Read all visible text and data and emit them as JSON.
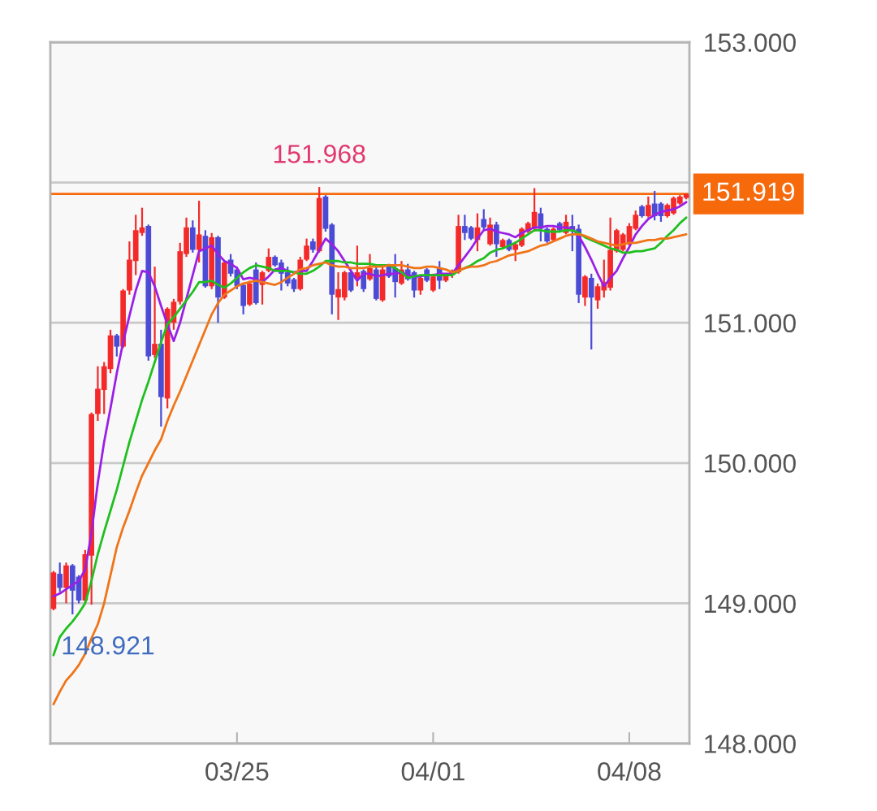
{
  "chart_data": {
    "type": "candlestick",
    "categories": [
      null,
      null,
      null,
      null,
      null,
      null,
      null,
      null,
      null,
      null,
      null,
      null,
      null,
      null,
      null,
      null,
      null,
      null,
      null,
      null,
      null,
      null,
      null,
      null,
      null,
      null,
      null,
      null,
      null,
      "03/25",
      null,
      null,
      null,
      null,
      null,
      null,
      null,
      null,
      null,
      null,
      null,
      null,
      null,
      null,
      null,
      null,
      null,
      null,
      null,
      null,
      null,
      null,
      null,
      null,
      null,
      null,
      null,
      null,
      null,
      null,
      "04/01",
      null,
      null,
      null,
      null,
      null,
      null,
      null,
      null,
      null,
      null,
      null,
      null,
      null,
      null,
      null,
      null,
      null,
      null,
      null,
      null,
      null,
      null,
      null,
      null,
      null,
      null,
      null,
      null,
      null,
      null,
      "04/08",
      null,
      null,
      null,
      null,
      null,
      null,
      null,
      null,
      null
    ],
    "ohlc": [
      [
        148.96,
        149.23,
        148.95,
        149.22
      ],
      [
        149.21,
        149.29,
        149.08,
        149.11
      ],
      [
        149.11,
        149.29,
        149.0,
        149.27
      ],
      [
        149.27,
        149.28,
        148.921,
        149.09
      ],
      [
        149.19,
        149.2,
        149.0,
        149.02
      ],
      [
        149.02,
        149.38,
        149.0,
        149.35
      ],
      [
        149.34,
        150.36,
        148.99,
        150.35
      ],
      [
        150.35,
        150.69,
        150.3,
        150.53
      ],
      [
        150.52,
        150.72,
        150.35,
        150.69
      ],
      [
        150.67,
        150.95,
        150.64,
        150.91
      ],
      [
        150.91,
        150.92,
        150.76,
        150.83
      ],
      [
        150.83,
        151.24,
        150.82,
        151.23
      ],
      [
        151.23,
        151.58,
        151.2,
        151.45
      ],
      [
        151.44,
        151.77,
        151.34,
        151.66
      ],
      [
        151.64,
        151.82,
        151.62,
        151.68
      ],
      [
        151.69,
        151.7,
        150.73,
        150.76
      ],
      [
        150.77,
        151.4,
        150.75,
        150.85
      ],
      [
        150.85,
        150.95,
        150.26,
        150.47
      ],
      [
        150.46,
        151.11,
        150.39,
        151.1
      ],
      [
        151.0,
        151.17,
        150.95,
        151.15
      ],
      [
        151.15,
        151.57,
        151.13,
        151.51
      ],
      [
        151.49,
        151.75,
        151.47,
        151.68
      ],
      [
        151.68,
        151.73,
        151.5,
        151.52
      ],
      [
        151.52,
        151.87,
        151.43,
        151.63
      ],
      [
        151.62,
        151.66,
        151.25,
        151.26
      ],
      [
        151.26,
        151.64,
        151.24,
        151.61
      ],
      [
        151.61,
        151.62,
        151.0,
        151.18
      ],
      [
        151.18,
        151.44,
        151.17,
        151.43
      ],
      [
        151.45,
        151.49,
        151.33,
        151.35
      ],
      [
        151.38,
        151.4,
        151.24,
        151.26
      ],
      [
        151.27,
        151.28,
        151.06,
        151.12
      ],
      [
        151.13,
        151.3,
        151.12,
        151.28
      ],
      [
        151.38,
        151.43,
        151.13,
        151.14
      ],
      [
        151.27,
        151.37,
        151.13,
        151.36
      ],
      [
        151.37,
        151.53,
        151.36,
        151.47
      ],
      [
        151.47,
        151.48,
        151.4,
        151.41
      ],
      [
        151.43,
        151.45,
        151.23,
        151.35
      ],
      [
        151.36,
        151.4,
        151.26,
        151.28
      ],
      [
        151.31,
        151.32,
        151.22,
        151.24
      ],
      [
        151.24,
        151.47,
        151.23,
        151.45
      ],
      [
        151.45,
        151.6,
        151.44,
        151.55
      ],
      [
        151.58,
        151.6,
        151.5,
        151.52
      ],
      [
        151.51,
        151.968,
        151.5,
        151.89
      ],
      [
        151.9,
        151.91,
        151.65,
        151.67
      ],
      [
        151.7,
        151.71,
        151.06,
        151.2
      ],
      [
        151.18,
        151.36,
        151.02,
        151.24
      ],
      [
        151.18,
        151.37,
        151.16,
        151.36
      ],
      [
        151.36,
        151.38,
        151.22,
        151.23
      ],
      [
        151.31,
        151.55,
        151.26,
        151.36
      ],
      [
        151.37,
        151.38,
        151.22,
        151.24
      ],
      [
        151.31,
        151.49,
        151.3,
        151.39
      ],
      [
        151.38,
        151.4,
        151.16,
        151.17
      ],
      [
        151.16,
        151.4,
        151.15,
        151.38
      ],
      [
        151.4,
        151.42,
        151.32,
        151.33
      ],
      [
        151.39,
        151.49,
        151.18,
        151.29
      ],
      [
        151.28,
        151.44,
        151.27,
        151.38
      ],
      [
        151.38,
        151.42,
        151.3,
        151.31
      ],
      [
        151.36,
        151.37,
        151.18,
        151.23
      ],
      [
        151.23,
        151.34,
        151.2,
        151.32
      ],
      [
        151.38,
        151.39,
        151.29,
        151.3
      ],
      [
        151.23,
        151.35,
        151.22,
        151.33
      ],
      [
        151.39,
        151.44,
        151.24,
        151.3
      ],
      [
        151.3,
        151.35,
        151.29,
        151.34
      ],
      [
        151.34,
        151.38,
        151.32,
        151.36
      ],
      [
        151.36,
        151.77,
        151.35,
        151.69
      ],
      [
        151.69,
        151.77,
        151.59,
        151.64
      ],
      [
        151.68,
        151.69,
        151.59,
        151.6
      ],
      [
        151.59,
        151.78,
        151.51,
        151.68
      ],
      [
        151.74,
        151.81,
        151.66,
        151.68
      ],
      [
        151.56,
        151.75,
        151.55,
        151.7
      ],
      [
        151.7,
        151.72,
        151.47,
        151.56
      ],
      [
        151.54,
        151.6,
        151.53,
        151.59
      ],
      [
        151.59,
        151.6,
        151.51,
        151.52
      ],
      [
        151.52,
        151.58,
        151.44,
        151.56
      ],
      [
        151.55,
        151.68,
        151.54,
        151.67
      ],
      [
        151.65,
        151.72,
        151.64,
        151.71
      ],
      [
        151.67,
        151.96,
        151.65,
        151.79
      ],
      [
        151.78,
        151.82,
        151.58,
        151.67
      ],
      [
        151.67,
        151.68,
        151.57,
        151.58
      ],
      [
        151.59,
        151.68,
        151.58,
        151.67
      ],
      [
        151.71,
        151.72,
        151.65,
        151.66
      ],
      [
        151.64,
        151.77,
        151.63,
        151.72
      ],
      [
        151.69,
        151.77,
        151.51,
        151.66
      ],
      [
        151.67,
        151.7,
        151.14,
        151.2
      ],
      [
        151.18,
        151.34,
        151.12,
        151.33
      ],
      [
        151.32,
        151.35,
        150.81,
        151.18
      ],
      [
        151.16,
        151.28,
        151.1,
        151.26
      ],
      [
        151.23,
        151.45,
        151.18,
        151.29
      ],
      [
        151.25,
        151.75,
        151.23,
        151.52
      ],
      [
        151.51,
        151.67,
        151.5,
        151.66
      ],
      [
        151.52,
        151.64,
        151.51,
        151.63
      ],
      [
        151.56,
        151.71,
        151.55,
        151.69
      ],
      [
        151.67,
        151.8,
        151.66,
        151.77
      ],
      [
        151.83,
        151.84,
        151.75,
        151.76
      ],
      [
        151.76,
        151.9,
        151.75,
        151.84
      ],
      [
        151.85,
        151.94,
        151.73,
        151.76
      ],
      [
        151.85,
        151.86,
        151.72,
        151.76
      ],
      [
        151.76,
        151.85,
        151.75,
        151.84
      ],
      [
        151.78,
        151.9,
        151.77,
        151.89
      ],
      [
        151.85,
        151.91,
        151.84,
        151.9
      ],
      [
        151.89,
        151.92,
        151.88,
        151.919
      ]
    ],
    "colors": [
      "#f42a2a",
      "#4b4bd6",
      "#f42a2a",
      "#4b4bd6",
      "#4b4bd6",
      "#f42a2a",
      "#f42a2a",
      "#f42a2a",
      "#f42a2a",
      "#f42a2a",
      "#4b4bd6",
      "#f42a2a",
      "#f42a2a",
      "#f42a2a",
      "#f42a2a",
      "#4b4bd6",
      "#f42a2a",
      "#4b4bd6",
      "#f42a2a",
      "#f42a2a",
      "#f42a2a",
      "#f42a2a",
      "#4b4bd6",
      "#f42a2a",
      "#4b4bd6",
      "#f42a2a",
      "#4b4bd6",
      "#f42a2a",
      "#4b4bd6",
      "#4b4bd6",
      "#4b4bd6",
      "#f42a2a",
      "#4b4bd6",
      "#f42a2a",
      "#f42a2a",
      "#4b4bd6",
      "#4b4bd6",
      "#4b4bd6",
      "#4b4bd6",
      "#f42a2a",
      "#f42a2a",
      "#4b4bd6",
      "#f42a2a",
      "#4b4bd6",
      "#4b4bd6",
      "#f42a2a",
      "#f42a2a",
      "#4b4bd6",
      "#f42a2a",
      "#4b4bd6",
      "#f42a2a",
      "#4b4bd6",
      "#f42a2a",
      "#4b4bd6",
      "#4b4bd6",
      "#f42a2a",
      "#4b4bd6",
      "#4b4bd6",
      "#f42a2a",
      "#4b4bd6",
      "#f42a2a",
      "#4b4bd6",
      "#f42a2a",
      "#f42a2a",
      "#f42a2a",
      "#4b4bd6",
      "#4b4bd6",
      "#f42a2a",
      "#4b4bd6",
      "#f42a2a",
      "#4b4bd6",
      "#f42a2a",
      "#4b4bd6",
      "#f42a2a",
      "#f42a2a",
      "#f42a2a",
      "#f42a2a",
      "#4b4bd6",
      "#4b4bd6",
      "#f42a2a",
      "#4b4bd6",
      "#f42a2a",
      "#4b4bd6",
      "#4b4bd6",
      "#f42a2a",
      "#4b4bd6",
      "#f42a2a",
      "#f42a2a",
      "#f42a2a",
      "#f42a2a",
      "#f42a2a",
      "#f42a2a",
      "#f42a2a",
      "#4b4bd6",
      "#f42a2a",
      "#4b4bd6",
      "#4b4bd6",
      "#f42a2a",
      "#f42a2a",
      "#f42a2a",
      "#f42a2a"
    ],
    "series": [
      {
        "type": "line",
        "color": "#9a1fe6",
        "values": [
          149.05,
          149.07,
          149.1,
          149.13,
          149.16,
          149.24,
          149.5,
          149.86,
          150.15,
          150.39,
          150.64,
          150.86,
          151.05,
          151.23,
          151.37,
          151.36,
          151.26,
          151.12,
          150.99,
          150.87,
          151.0,
          151.17,
          151.34,
          151.51,
          151.53,
          151.55,
          151.49,
          151.44,
          151.42,
          151.39,
          151.31,
          151.32,
          151.31,
          151.29,
          151.33,
          151.38,
          151.39,
          151.37,
          151.36,
          151.37,
          151.37,
          151.44,
          151.52,
          151.6,
          151.56,
          151.51,
          151.44,
          151.37,
          151.3,
          151.35,
          151.35,
          151.33,
          151.34,
          151.35,
          151.35,
          151.36,
          151.34,
          151.33,
          151.33,
          151.34,
          151.34,
          151.35,
          151.35,
          151.35,
          151.41,
          151.47,
          151.53,
          151.6,
          151.66,
          151.67,
          151.65,
          151.64,
          151.63,
          151.61,
          151.64,
          151.66,
          151.68,
          151.68,
          151.69,
          151.69,
          151.68,
          151.68,
          151.67,
          151.62,
          151.54,
          151.45,
          151.35,
          151.26,
          151.32,
          151.37,
          151.46,
          151.54,
          151.63,
          151.69,
          151.74,
          151.77,
          151.79,
          151.8,
          151.81,
          151.83,
          151.86
        ]
      },
      {
        "type": "line",
        "color": "#1fbf1f",
        "values": [
          148.63,
          148.76,
          148.82,
          148.87,
          148.93,
          149.0,
          149.16,
          149.35,
          149.51,
          149.66,
          149.81,
          149.98,
          150.15,
          150.3,
          150.45,
          150.58,
          150.72,
          150.86,
          150.99,
          151.04,
          151.1,
          151.16,
          151.22,
          151.29,
          151.29,
          151.3,
          151.27,
          151.25,
          151.28,
          151.32,
          151.36,
          151.39,
          151.41,
          151.4,
          151.39,
          151.37,
          151.37,
          151.37,
          151.36,
          151.35,
          151.35,
          151.37,
          151.4,
          151.44,
          151.44,
          151.44,
          151.43,
          151.43,
          151.42,
          151.42,
          151.42,
          151.41,
          151.41,
          151.41,
          151.39,
          151.36,
          151.32,
          151.33,
          151.34,
          151.34,
          151.34,
          151.34,
          151.34,
          151.34,
          151.37,
          151.39,
          151.41,
          151.44,
          151.46,
          151.5,
          151.52,
          151.53,
          151.55,
          151.57,
          151.6,
          151.63,
          151.66,
          151.66,
          151.65,
          151.65,
          151.65,
          151.66,
          151.66,
          151.64,
          151.61,
          151.59,
          151.57,
          151.55,
          151.53,
          151.52,
          151.5,
          151.5,
          151.51,
          151.51,
          151.52,
          151.53,
          151.57,
          151.62,
          151.66,
          151.71,
          151.75
        ]
      },
      {
        "type": "line",
        "color": "#f07418",
        "values": [
          148.28,
          148.37,
          148.45,
          148.5,
          148.56,
          148.64,
          148.75,
          148.85,
          149.0,
          149.2,
          149.4,
          149.54,
          149.66,
          149.79,
          149.91,
          150.0,
          150.09,
          150.17,
          150.3,
          150.41,
          150.51,
          150.62,
          150.73,
          150.84,
          150.95,
          151.06,
          151.14,
          151.2,
          151.23,
          151.26,
          151.28,
          151.29,
          151.3,
          151.29,
          151.28,
          151.27,
          151.29,
          151.32,
          151.35,
          151.38,
          151.39,
          151.41,
          151.42,
          151.43,
          151.41,
          151.4,
          151.4,
          151.39,
          151.39,
          151.39,
          151.4,
          151.4,
          151.4,
          151.41,
          151.41,
          151.41,
          151.4,
          151.39,
          151.39,
          151.4,
          151.4,
          151.39,
          151.38,
          151.36,
          151.37,
          151.39,
          151.4,
          151.4,
          151.41,
          151.43,
          151.44,
          151.46,
          151.48,
          151.49,
          151.5,
          151.51,
          151.53,
          151.55,
          151.56,
          151.58,
          151.6,
          151.62,
          151.63,
          151.63,
          151.62,
          151.6,
          151.58,
          151.57,
          151.56,
          151.55,
          151.56,
          151.57,
          151.57,
          151.58,
          151.59,
          151.59,
          151.6,
          151.6,
          151.61,
          151.62,
          151.63
        ]
      }
    ],
    "ylim": [
      148,
      153
    ],
    "yticks": [
      {
        "value": 148,
        "label": "148.000"
      },
      {
        "value": 149,
        "label": "149.000"
      },
      {
        "value": 150,
        "label": "150.000"
      },
      {
        "value": 151,
        "label": "151.000"
      },
      {
        "value": 152,
        "label": null
      },
      {
        "value": 153,
        "label": "153.000"
      }
    ],
    "grid": "y",
    "ref_lines": [
      {
        "axis": "y",
        "value": 151.919,
        "label": "151.919",
        "color": "#f76a0c"
      }
    ],
    "annotations": [
      {
        "text": "151.968",
        "y": 151.968
      },
      "148.921"
    ]
  }
}
